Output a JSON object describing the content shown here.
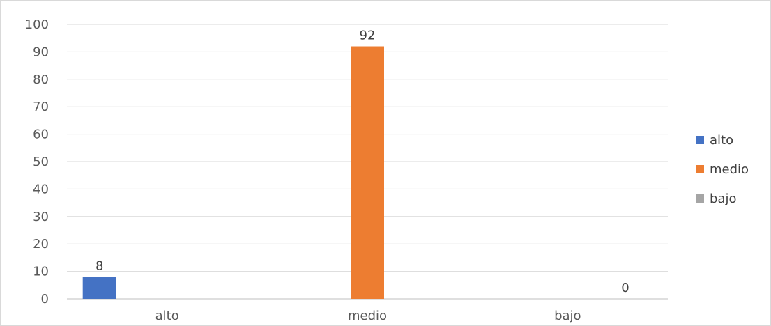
{
  "chart_data": {
    "type": "bar",
    "categories": [
      "alto",
      "medio",
      "bajo"
    ],
    "series": [
      {
        "name": "alto",
        "values": [
          8,
          null,
          null
        ],
        "color": "#4472C4"
      },
      {
        "name": "medio",
        "values": [
          null,
          92,
          null
        ],
        "color": "#ED7D31"
      },
      {
        "name": "bajo",
        "values": [
          null,
          null,
          0
        ],
        "color": "#A5A5A5"
      }
    ],
    "title": "",
    "xlabel": "",
    "ylabel": "",
    "ylim": [
      0,
      100
    ],
    "yticks": [
      0,
      10,
      20,
      30,
      40,
      50,
      60,
      70,
      80,
      90,
      100
    ],
    "grid": true,
    "legend_position": "right",
    "data_labels": [
      "8",
      "92",
      "0"
    ]
  }
}
